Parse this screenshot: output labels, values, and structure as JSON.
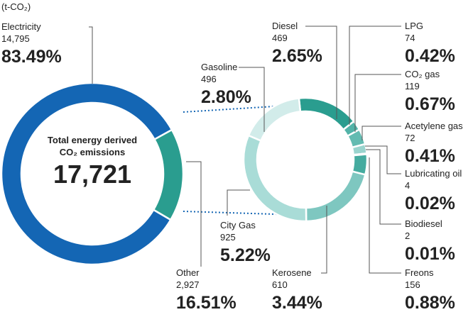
{
  "chart_data": [
    {
      "type": "pie",
      "unit": "(t-CO₂)",
      "center_label": [
        "Total energy derived",
        "CO₂ emissions"
      ],
      "total": {
        "value": 17721,
        "label": "17,721"
      },
      "categories": [
        "Electricity",
        "Other"
      ],
      "values": [
        14795,
        2927
      ],
      "value_labels": [
        "14,795",
        "2,927"
      ],
      "percents": [
        83.49,
        16.51
      ],
      "percent_labels": [
        "83.49%",
        "16.51%"
      ],
      "colors": [
        "#1466b4",
        "#2a9d8f"
      ]
    },
    {
      "type": "pie",
      "categories": [
        "Diesel",
        "LPG",
        "CO₂ gas",
        "Acetylene gas",
        "Lubricating oil",
        "Biodiesel",
        "Freons",
        "Kerosene",
        "City Gas",
        "Gasoline"
      ],
      "values": [
        469,
        74,
        119,
        72,
        4,
        2,
        156,
        610,
        925,
        496
      ],
      "percents": [
        2.65,
        0.42,
        0.67,
        0.41,
        0.02,
        0.01,
        0.88,
        3.44,
        5.22,
        2.8
      ],
      "percent_labels": [
        "2.65%",
        "0.42%",
        "0.67%",
        "0.41%",
        "0.02%",
        "0.01%",
        "0.88%",
        "3.44%",
        "5.22%",
        "2.80%"
      ],
      "colors": [
        "#2a9d8f",
        "#52b3a8",
        "#63bbb1",
        "#9ad4ce",
        "#72c2b9",
        "#85cac3",
        "#45ab9f",
        "#7ec7c0",
        "#a9dcd7",
        "#d2ecea"
      ]
    }
  ]
}
